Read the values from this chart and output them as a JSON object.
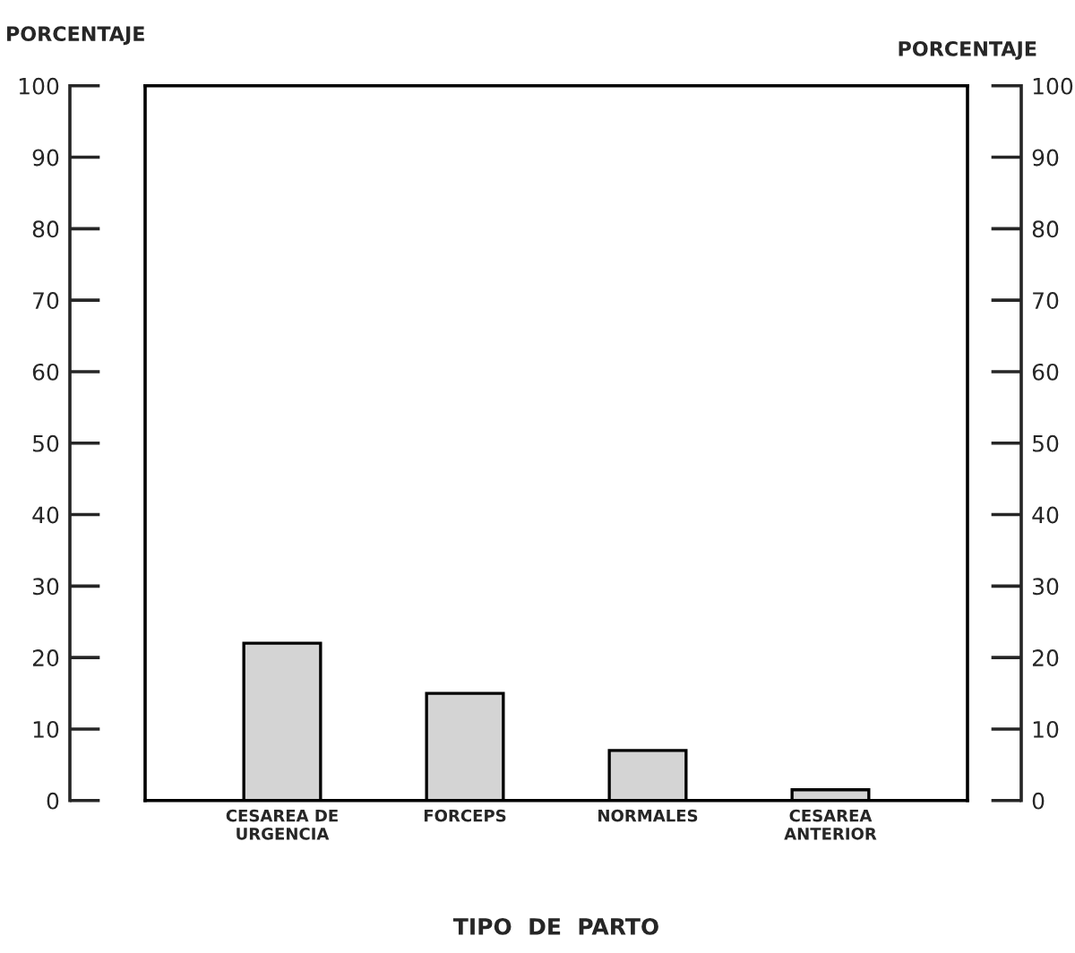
{
  "chart_data": {
    "type": "bar",
    "xlabel": "TIPO  DE  PARTO",
    "ylabel": "PORCENTAJE",
    "y2label": "PORCENTAJE",
    "categories": [
      "CESAREA DE\nURGENCIA",
      "FORCEPS",
      "NORMALES",
      "CESAREA\nANTERIOR"
    ],
    "values": [
      22,
      15,
      7,
      1.5
    ],
    "color": "#d4d4d4",
    "ylim": [
      0,
      100
    ],
    "yticks": [
      0,
      10,
      20,
      30,
      40,
      50,
      60,
      70,
      80,
      90,
      100
    ],
    "y2lim": [
      0,
      100
    ],
    "y2ticks": [
      0,
      10,
      20,
      30,
      40,
      50,
      60,
      70,
      80,
      90,
      100
    ],
    "grid": false
  }
}
